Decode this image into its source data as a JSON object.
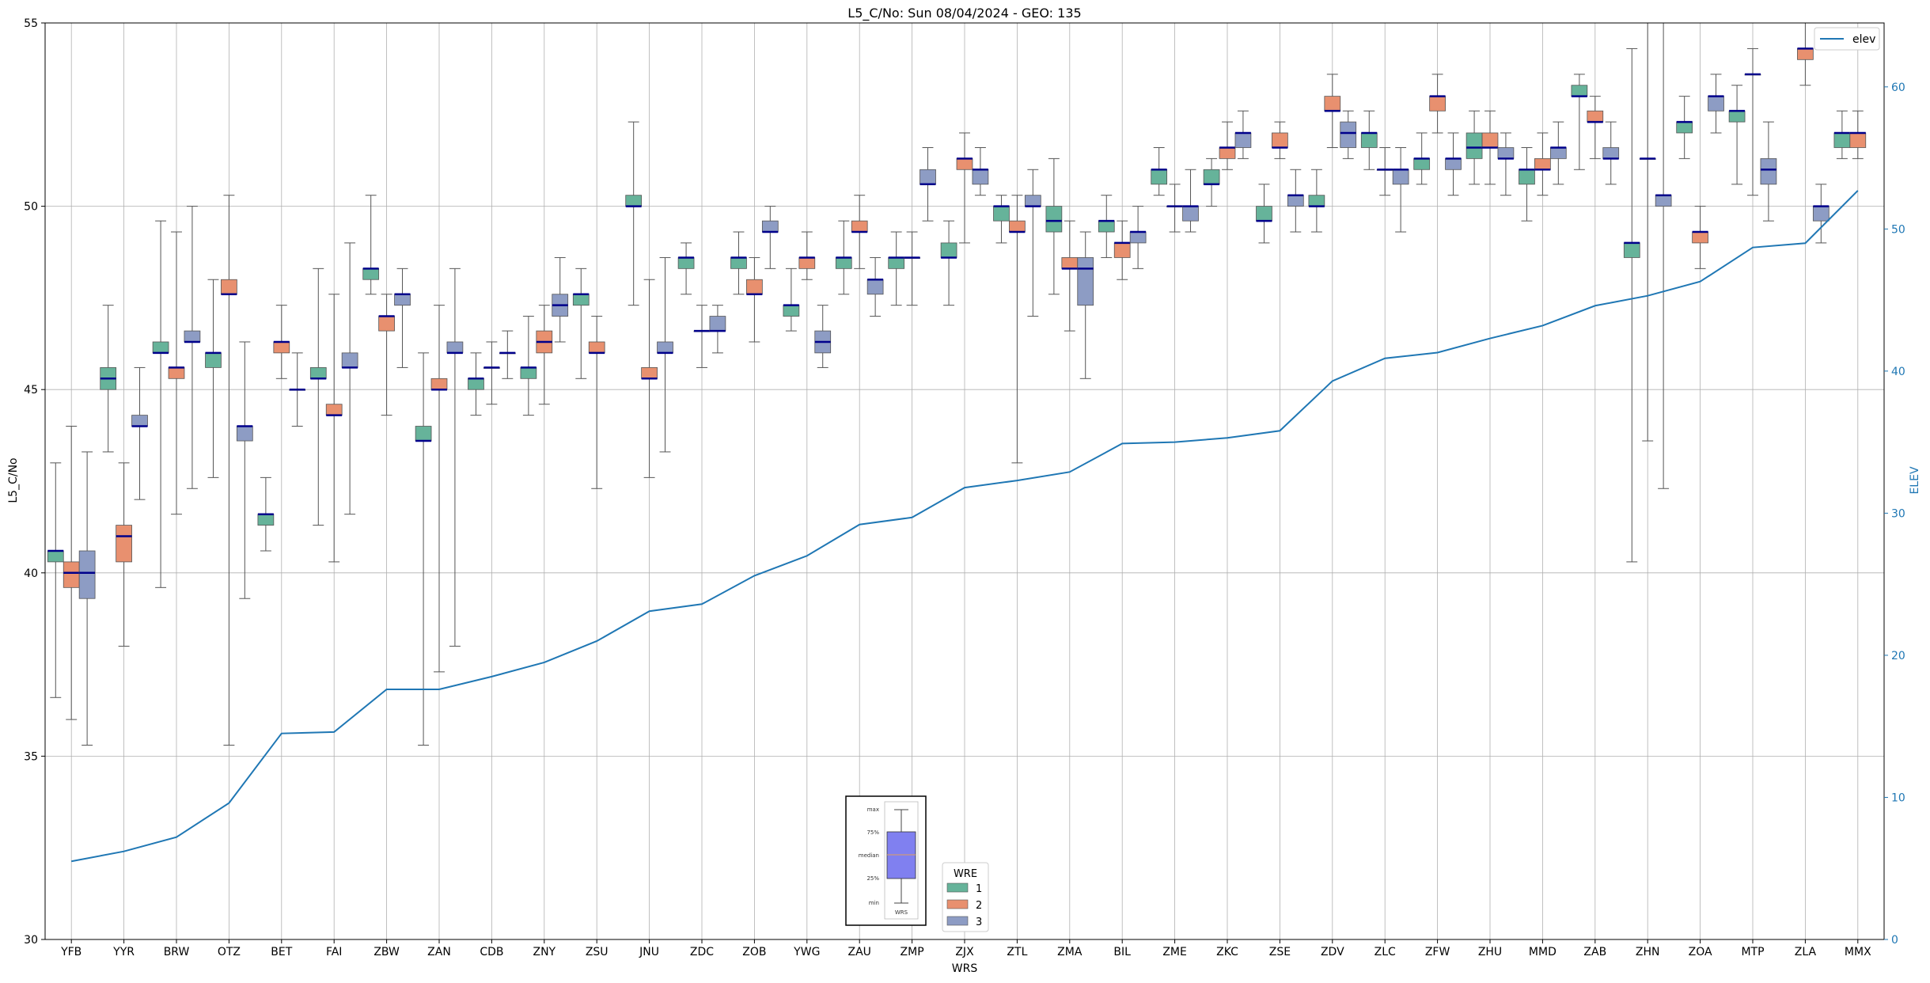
{
  "chart_data": {
    "type": "box",
    "title": "L5_C/No: Sun 08/04/2024 - GEO: 135",
    "xlabel": "WRS",
    "ylabel": "L5_C/No",
    "y2label": "ELEV",
    "ylim": [
      30,
      55
    ],
    "y2lim": [
      0,
      64.5
    ],
    "yticks": [
      30,
      35,
      40,
      45,
      50,
      55
    ],
    "y2ticks": [
      0,
      10,
      20,
      30,
      40,
      50,
      60
    ],
    "grid": true,
    "categories": [
      "YFB",
      "YYR",
      "BRW",
      "OTZ",
      "BET",
      "FAI",
      "ZBW",
      "ZAN",
      "CDB",
      "ZNY",
      "ZSU",
      "JNU",
      "ZDC",
      "ZOB",
      "YWG",
      "ZAU",
      "ZMP",
      "ZJX",
      "ZTL",
      "ZMA",
      "BIL",
      "ZME",
      "ZKC",
      "ZSE",
      "ZDV",
      "ZLC",
      "ZFW",
      "ZHU",
      "MMD",
      "ZAB",
      "ZHN",
      "ZOA",
      "MTP",
      "ZLA",
      "MMX"
    ],
    "wre_legend": {
      "title": "WRE",
      "entries": [
        {
          "name": "1",
          "color": "#66b39a"
        },
        {
          "name": "2",
          "color": "#e8906f"
        },
        {
          "name": "3",
          "color": "#8d9cc4"
        }
      ]
    },
    "series": [
      {
        "name": "1",
        "color": "#66b39a",
        "boxes": [
          {
            "cat": 0,
            "min": 36.6,
            "q1": 40.3,
            "median": 40.6,
            "q3": 40.6,
            "max": 43.0
          },
          {
            "cat": 1,
            "min": 43.3,
            "q1": 45.0,
            "median": 45.3,
            "q3": 45.6,
            "max": 47.3
          },
          {
            "cat": 2,
            "min": 39.6,
            "q1": 46.0,
            "median": 46.0,
            "q3": 46.3,
            "max": 49.6
          },
          {
            "cat": 3,
            "min": 42.6,
            "q1": 45.6,
            "median": 46.0,
            "q3": 46.0,
            "max": 48.0
          },
          {
            "cat": 4,
            "min": 40.6,
            "q1": 41.3,
            "median": 41.6,
            "q3": 41.6,
            "max": 42.6
          },
          {
            "cat": 5,
            "min": 41.3,
            "q1": 45.3,
            "median": 45.3,
            "q3": 45.6,
            "max": 48.3
          },
          {
            "cat": 6,
            "min": 47.6,
            "q1": 48.0,
            "median": 48.3,
            "q3": 48.3,
            "max": 50.3
          },
          {
            "cat": 7,
            "min": 35.3,
            "q1": 43.6,
            "median": 43.6,
            "q3": 44.0,
            "max": 46.0
          },
          {
            "cat": 8,
            "min": 44.3,
            "q1": 45.0,
            "median": 45.3,
            "q3": 45.3,
            "max": 46.0
          },
          {
            "cat": 9,
            "min": 44.3,
            "q1": 45.3,
            "median": 45.6,
            "q3": 45.6,
            "max": 47.0
          },
          {
            "cat": 10,
            "min": 45.3,
            "q1": 47.3,
            "median": 47.6,
            "q3": 47.6,
            "max": 48.3
          },
          {
            "cat": 11,
            "min": 47.3,
            "q1": 50.0,
            "median": 50.0,
            "q3": 50.3,
            "max": 52.3
          },
          {
            "cat": 12,
            "min": 47.6,
            "q1": 48.3,
            "median": 48.6,
            "q3": 48.6,
            "max": 49.0
          },
          {
            "cat": 13,
            "min": 47.6,
            "q1": 48.3,
            "median": 48.6,
            "q3": 48.6,
            "max": 49.3
          },
          {
            "cat": 14,
            "min": 46.6,
            "q1": 47.0,
            "median": 47.3,
            "q3": 47.3,
            "max": 48.3
          },
          {
            "cat": 15,
            "min": 47.6,
            "q1": 48.3,
            "median": 48.6,
            "q3": 48.6,
            "max": 49.6
          },
          {
            "cat": 16,
            "min": 47.3,
            "q1": 48.3,
            "median": 48.6,
            "q3": 48.6,
            "max": 49.3
          },
          {
            "cat": 17,
            "min": 47.3,
            "q1": 48.6,
            "median": 48.6,
            "q3": 49.0,
            "max": 49.6
          },
          {
            "cat": 18,
            "min": 49.0,
            "q1": 49.6,
            "median": 50.0,
            "q3": 50.0,
            "max": 50.3
          },
          {
            "cat": 19,
            "min": 47.6,
            "q1": 49.3,
            "median": 49.6,
            "q3": 50.0,
            "max": 51.3
          },
          {
            "cat": 20,
            "min": 48.6,
            "q1": 49.3,
            "median": 49.6,
            "q3": 49.6,
            "max": 50.3
          },
          {
            "cat": 21,
            "min": 50.3,
            "q1": 50.6,
            "median": 51.0,
            "q3": 51.0,
            "max": 51.6
          },
          {
            "cat": 22,
            "min": 50.0,
            "q1": 50.6,
            "median": 50.6,
            "q3": 51.0,
            "max": 51.3
          },
          {
            "cat": 23,
            "min": 49.0,
            "q1": 49.6,
            "median": 49.6,
            "q3": 50.0,
            "max": 50.6
          },
          {
            "cat": 24,
            "min": 49.3,
            "q1": 50.0,
            "median": 50.0,
            "q3": 50.3,
            "max": 51.0
          },
          {
            "cat": 25,
            "min": 51.0,
            "q1": 51.6,
            "median": 52.0,
            "q3": 52.0,
            "max": 52.6
          },
          {
            "cat": 26,
            "min": 50.6,
            "q1": 51.0,
            "median": 51.3,
            "q3": 51.3,
            "max": 52.0
          },
          {
            "cat": 27,
            "min": 50.6,
            "q1": 51.3,
            "median": 51.6,
            "q3": 52.0,
            "max": 52.6
          },
          {
            "cat": 28,
            "min": 49.6,
            "q1": 50.6,
            "median": 51.0,
            "q3": 51.0,
            "max": 51.6
          },
          {
            "cat": 29,
            "min": 51.0,
            "q1": 53.0,
            "median": 53.0,
            "q3": 53.3,
            "max": 53.6
          },
          {
            "cat": 30,
            "min": 40.3,
            "q1": 48.6,
            "median": 49.0,
            "q3": 49.0,
            "max": 54.3
          },
          {
            "cat": 31,
            "min": 51.3,
            "q1": 52.0,
            "median": 52.3,
            "q3": 52.3,
            "max": 53.0
          },
          {
            "cat": 32,
            "min": 50.6,
            "q1": 52.3,
            "median": 52.6,
            "q3": 52.6,
            "max": 53.3
          },
          {
            "cat": 34,
            "min": 51.3,
            "q1": 51.6,
            "median": 52.0,
            "q3": 52.0,
            "max": 52.6
          }
        ]
      },
      {
        "name": "2",
        "color": "#e8906f",
        "boxes": [
          {
            "cat": 0,
            "min": 36.0,
            "q1": 39.6,
            "median": 40.0,
            "q3": 40.3,
            "max": 44.0
          },
          {
            "cat": 1,
            "min": 38.0,
            "q1": 40.3,
            "median": 41.0,
            "q3": 41.3,
            "max": 43.0
          },
          {
            "cat": 2,
            "min": 41.6,
            "q1": 45.3,
            "median": 45.6,
            "q3": 45.6,
            "max": 49.3
          },
          {
            "cat": 3,
            "min": 35.3,
            "q1": 47.6,
            "median": 47.6,
            "q3": 48.0,
            "max": 50.3
          },
          {
            "cat": 4,
            "min": 45.3,
            "q1": 46.0,
            "median": 46.3,
            "q3": 46.3,
            "max": 47.3
          },
          {
            "cat": 5,
            "min": 40.3,
            "q1": 44.3,
            "median": 44.3,
            "q3": 44.6,
            "max": 47.6
          },
          {
            "cat": 6,
            "min": 44.3,
            "q1": 46.6,
            "median": 47.0,
            "q3": 47.0,
            "max": 47.6
          },
          {
            "cat": 7,
            "min": 37.3,
            "q1": 45.0,
            "median": 45.0,
            "q3": 45.3,
            "max": 47.3
          },
          {
            "cat": 8,
            "min": 44.6,
            "q1": 45.6,
            "median": 45.6,
            "q3": 45.6,
            "max": 46.3
          },
          {
            "cat": 9,
            "min": 44.6,
            "q1": 46.0,
            "median": 46.3,
            "q3": 46.6,
            "max": 47.3
          },
          {
            "cat": 10,
            "min": 42.3,
            "q1": 46.0,
            "median": 46.0,
            "q3": 46.3,
            "max": 47.0
          },
          {
            "cat": 11,
            "min": 42.6,
            "q1": 45.3,
            "median": 45.3,
            "q3": 45.6,
            "max": 48.0
          },
          {
            "cat": 12,
            "min": 45.6,
            "q1": 46.6,
            "median": 46.6,
            "q3": 46.6,
            "max": 47.3
          },
          {
            "cat": 13,
            "min": 46.3,
            "q1": 47.6,
            "median": 47.6,
            "q3": 48.0,
            "max": 48.6
          },
          {
            "cat": 14,
            "min": 48.0,
            "q1": 48.3,
            "median": 48.6,
            "q3": 48.6,
            "max": 49.3
          },
          {
            "cat": 15,
            "min": 48.3,
            "q1": 49.3,
            "median": 49.3,
            "q3": 49.6,
            "max": 50.3
          },
          {
            "cat": 16,
            "min": 47.3,
            "q1": 48.6,
            "median": 48.6,
            "q3": 48.6,
            "max": 49.3
          },
          {
            "cat": 17,
            "min": 49.0,
            "q1": 51.0,
            "median": 51.3,
            "q3": 51.3,
            "max": 52.0
          },
          {
            "cat": 18,
            "min": 43.0,
            "q1": 49.3,
            "median": 49.3,
            "q3": 49.6,
            "max": 50.3
          },
          {
            "cat": 19,
            "min": 46.6,
            "q1": 48.3,
            "median": 48.3,
            "q3": 48.6,
            "max": 49.6
          },
          {
            "cat": 20,
            "min": 48.0,
            "q1": 48.6,
            "median": 49.0,
            "q3": 49.0,
            "max": 49.6
          },
          {
            "cat": 21,
            "min": 49.3,
            "q1": 50.0,
            "median": 50.0,
            "q3": 50.0,
            "max": 50.6
          },
          {
            "cat": 22,
            "min": 51.0,
            "q1": 51.3,
            "median": 51.6,
            "q3": 51.6,
            "max": 52.3
          },
          {
            "cat": 23,
            "min": 51.3,
            "q1": 51.6,
            "median": 51.6,
            "q3": 52.0,
            "max": 52.3
          },
          {
            "cat": 24,
            "min": 51.6,
            "q1": 52.6,
            "median": 52.6,
            "q3": 53.0,
            "max": 53.6
          },
          {
            "cat": 25,
            "min": 50.3,
            "q1": 51.0,
            "median": 51.0,
            "q3": 51.0,
            "max": 51.6
          },
          {
            "cat": 26,
            "min": 52.0,
            "q1": 52.6,
            "median": 53.0,
            "q3": 53.0,
            "max": 53.6
          },
          {
            "cat": 27,
            "min": 50.6,
            "q1": 51.6,
            "median": 51.6,
            "q3": 52.0,
            "max": 52.6
          },
          {
            "cat": 28,
            "min": 50.3,
            "q1": 51.0,
            "median": 51.0,
            "q3": 51.3,
            "max": 52.0
          },
          {
            "cat": 29,
            "min": 51.3,
            "q1": 52.3,
            "median": 52.3,
            "q3": 52.6,
            "max": 53.0
          },
          {
            "cat": 30,
            "min": 43.6,
            "q1": 51.3,
            "median": 51.3,
            "q3": 51.3,
            "max": 55.0
          },
          {
            "cat": 31,
            "min": 48.3,
            "q1": 49.0,
            "median": 49.3,
            "q3": 49.3,
            "max": 50.0
          },
          {
            "cat": 32,
            "min": 50.3,
            "q1": 53.6,
            "median": 53.6,
            "q3": 53.6,
            "max": 54.3
          },
          {
            "cat": 33,
            "min": 53.3,
            "q1": 54.0,
            "median": 54.3,
            "q3": 54.3,
            "max": 55.0
          },
          {
            "cat": 34,
            "min": 51.3,
            "q1": 51.6,
            "median": 52.0,
            "q3": 52.0,
            "max": 52.6
          }
        ]
      },
      {
        "name": "3",
        "color": "#8d9cc4",
        "boxes": [
          {
            "cat": 0,
            "min": 35.3,
            "q1": 39.3,
            "median": 40.0,
            "q3": 40.6,
            "max": 43.3
          },
          {
            "cat": 1,
            "min": 42.0,
            "q1": 44.0,
            "median": 44.0,
            "q3": 44.3,
            "max": 45.6
          },
          {
            "cat": 2,
            "min": 42.3,
            "q1": 46.3,
            "median": 46.3,
            "q3": 46.6,
            "max": 50.0
          },
          {
            "cat": 3,
            "min": 39.3,
            "q1": 43.6,
            "median": 44.0,
            "q3": 44.0,
            "max": 46.3
          },
          {
            "cat": 4,
            "min": 44.0,
            "q1": 45.0,
            "median": 45.0,
            "q3": 45.0,
            "max": 46.0
          },
          {
            "cat": 5,
            "min": 41.6,
            "q1": 45.6,
            "median": 45.6,
            "q3": 46.0,
            "max": 49.0
          },
          {
            "cat": 6,
            "min": 45.6,
            "q1": 47.3,
            "median": 47.6,
            "q3": 47.6,
            "max": 48.3
          },
          {
            "cat": 7,
            "min": 38.0,
            "q1": 46.0,
            "median": 46.0,
            "q3": 46.3,
            "max": 48.3
          },
          {
            "cat": 8,
            "min": 45.3,
            "q1": 46.0,
            "median": 46.0,
            "q3": 46.0,
            "max": 46.6
          },
          {
            "cat": 9,
            "min": 46.3,
            "q1": 47.0,
            "median": 47.3,
            "q3": 47.6,
            "max": 48.6
          },
          {
            "cat": 11,
            "min": 43.3,
            "q1": 46.0,
            "median": 46.0,
            "q3": 46.3,
            "max": 48.6
          },
          {
            "cat": 12,
            "min": 46.0,
            "q1": 46.6,
            "median": 46.6,
            "q3": 47.0,
            "max": 47.3
          },
          {
            "cat": 13,
            "min": 48.3,
            "q1": 49.3,
            "median": 49.3,
            "q3": 49.6,
            "max": 50.0
          },
          {
            "cat": 14,
            "min": 45.6,
            "q1": 46.0,
            "median": 46.3,
            "q3": 46.6,
            "max": 47.3
          },
          {
            "cat": 15,
            "min": 47.0,
            "q1": 47.6,
            "median": 48.0,
            "q3": 48.0,
            "max": 48.6
          },
          {
            "cat": 16,
            "min": 49.6,
            "q1": 50.6,
            "median": 50.6,
            "q3": 51.0,
            "max": 51.6
          },
          {
            "cat": 17,
            "min": 50.3,
            "q1": 50.6,
            "median": 51.0,
            "q3": 51.0,
            "max": 51.6
          },
          {
            "cat": 18,
            "min": 47.0,
            "q1": 50.0,
            "median": 50.0,
            "q3": 50.3,
            "max": 51.0
          },
          {
            "cat": 19,
            "min": 45.3,
            "q1": 47.3,
            "median": 48.3,
            "q3": 48.6,
            "max": 49.3
          },
          {
            "cat": 20,
            "min": 48.3,
            "q1": 49.0,
            "median": 49.3,
            "q3": 49.3,
            "max": 50.0
          },
          {
            "cat": 21,
            "min": 49.3,
            "q1": 49.6,
            "median": 50.0,
            "q3": 50.0,
            "max": 51.0
          },
          {
            "cat": 22,
            "min": 51.3,
            "q1": 51.6,
            "median": 52.0,
            "q3": 52.0,
            "max": 52.6
          },
          {
            "cat": 23,
            "min": 49.3,
            "q1": 50.0,
            "median": 50.3,
            "q3": 50.3,
            "max": 51.0
          },
          {
            "cat": 24,
            "min": 51.3,
            "q1": 51.6,
            "median": 52.0,
            "q3": 52.3,
            "max": 52.6
          },
          {
            "cat": 25,
            "min": 49.3,
            "q1": 50.6,
            "median": 51.0,
            "q3": 51.0,
            "max": 51.6
          },
          {
            "cat": 26,
            "min": 50.3,
            "q1": 51.0,
            "median": 51.3,
            "q3": 51.3,
            "max": 52.0
          },
          {
            "cat": 27,
            "min": 50.3,
            "q1": 51.3,
            "median": 51.3,
            "q3": 51.6,
            "max": 52.0
          },
          {
            "cat": 28,
            "min": 50.6,
            "q1": 51.3,
            "median": 51.6,
            "q3": 51.6,
            "max": 52.3
          },
          {
            "cat": 29,
            "min": 50.6,
            "q1": 51.3,
            "median": 51.3,
            "q3": 51.6,
            "max": 52.3
          },
          {
            "cat": 30,
            "min": 42.3,
            "q1": 50.0,
            "median": 50.3,
            "q3": 50.3,
            "max": 55.0
          },
          {
            "cat": 31,
            "min": 52.0,
            "q1": 52.6,
            "median": 53.0,
            "q3": 53.0,
            "max": 53.6
          },
          {
            "cat": 32,
            "min": 49.6,
            "q1": 50.6,
            "median": 51.0,
            "q3": 51.3,
            "max": 52.3
          },
          {
            "cat": 33,
            "min": 49.0,
            "q1": 49.6,
            "median": 50.0,
            "q3": 50.0,
            "max": 50.6
          }
        ]
      }
    ],
    "elev": {
      "name": "elev",
      "color": "#1f77b4",
      "values": [
        5.5,
        6.2,
        7.2,
        9.6,
        14.5,
        14.6,
        17.6,
        17.6,
        18.5,
        19.5,
        21.0,
        23.1,
        23.6,
        25.6,
        27.0,
        29.2,
        29.7,
        31.8,
        32.3,
        32.9,
        34.9,
        35.0,
        35.3,
        35.8,
        39.3,
        40.9,
        41.3,
        42.3,
        43.2,
        44.6,
        45.3,
        46.3,
        48.7,
        49.0,
        52.7
      ]
    },
    "elev_legend_label": "elev",
    "box_key": {
      "labels": [
        "max",
        "75%",
        "median",
        "25%",
        "min"
      ],
      "category": "WRS",
      "color": "#8080f0"
    }
  }
}
